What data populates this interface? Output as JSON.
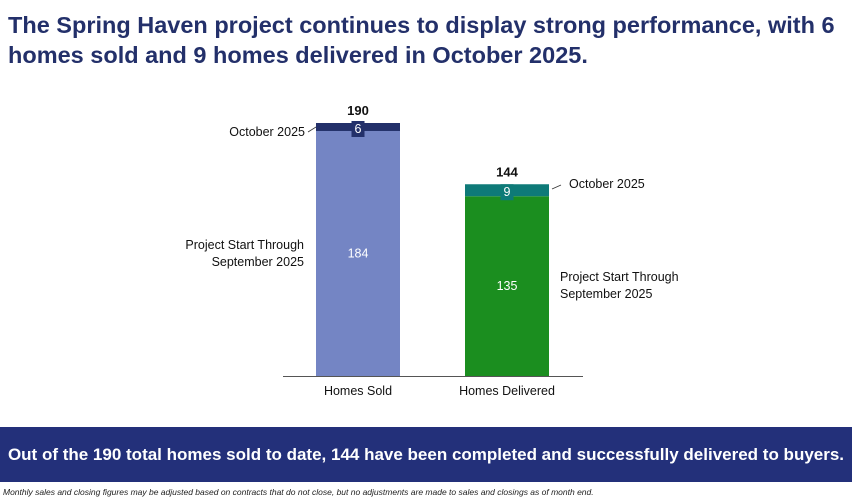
{
  "headline": "The Spring Haven project continues to display strong performance, with 6 homes sold and 9 homes delivered in October 2025.",
  "chart_data": {
    "type": "bar",
    "stacked": true,
    "title": "",
    "xlabel": "",
    "ylabel": "",
    "ylim": [
      0,
      190
    ],
    "grid": false,
    "categories": [
      "Homes Sold",
      "Homes Delivered"
    ],
    "totals": [
      "190",
      "144"
    ],
    "series": [
      {
        "values": [
          184,
          135
        ],
        "colors": [
          "#7485c4",
          "#1b8e1f"
        ],
        "labels": [
          "Project Start Through\nSeptember 2025",
          "Project Start Through\nSeptember 2025"
        ]
      },
      {
        "values": [
          6,
          9
        ],
        "colors": [
          "#23306a",
          "#0e7a78"
        ],
        "labels": [
          "October 2025",
          "October 2025"
        ]
      }
    ],
    "segment_text_colors": [
      "#ffffff",
      "#ffffff"
    ],
    "axis_color": "#555555",
    "total_color": "#111111"
  },
  "banner": {
    "text": "Out of the 190 total homes sold to date, 144 have been completed and successfully delivered to buyers.",
    "color": "#23307a"
  },
  "footnote": "Monthly sales and closing figures may be adjusted based on contracts that do not close, but no adjustments are made to sales and closings as of month end."
}
